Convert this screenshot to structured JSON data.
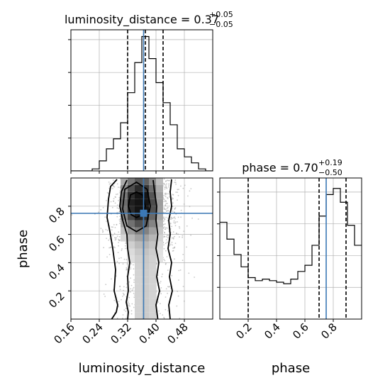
{
  "chart_data": {
    "type": "corner",
    "colors": {
      "truth": "#3b78b5",
      "hist": "#000000",
      "quantile": "#000000",
      "grid": "#b0b0b0",
      "scatter": "#9a9a9a"
    },
    "grid": true,
    "parameters": [
      {
        "name": "luminosity_distance",
        "label": "luminosity_distance",
        "title_prefix": "luminosity_distance = 0.37",
        "title_sup": "+0.05",
        "title_sub": "−0.05",
        "range": [
          0.16,
          0.56
        ],
        "ticks": [
          0.16,
          0.24,
          0.32,
          0.4,
          0.48
        ],
        "tick_labels": [
          "0.16",
          "0.24",
          "0.32",
          "0.40",
          "0.48"
        ],
        "truth": 0.365,
        "quantiles": [
          0.32,
          0.37,
          0.42
        ],
        "hist_edges": [
          0.16,
          0.18,
          0.2,
          0.22,
          0.24,
          0.26,
          0.28,
          0.3,
          0.32,
          0.34,
          0.36,
          0.38,
          0.4,
          0.42,
          0.44,
          0.46,
          0.48,
          0.5,
          0.52,
          0.54,
          0.56
        ],
        "hist_counts": [
          0,
          0,
          0,
          1,
          5,
          11,
          16,
          24,
          39,
          54,
          67,
          56,
          44,
          34,
          23,
          11,
          7,
          4,
          1,
          0
        ]
      },
      {
        "name": "phase",
        "label": "phase",
        "title_prefix": "phase = 0.70",
        "title_sup": "+0.19",
        "title_sub": "−0.50",
        "range": [
          0.0,
          1.0
        ],
        "ticks": [
          0.2,
          0.4,
          0.6,
          0.8
        ],
        "tick_labels": [
          "0.2",
          "0.4",
          "0.6",
          "0.8"
        ],
        "truth": 0.75,
        "quantiles": [
          0.2,
          0.7,
          0.89
        ],
        "hist_edges": [
          0.0,
          0.05,
          0.1,
          0.15,
          0.2,
          0.25,
          0.3,
          0.35,
          0.4,
          0.45,
          0.5,
          0.55,
          0.6,
          0.65,
          0.7,
          0.75,
          0.8,
          0.85,
          0.9,
          0.95,
          1.0
        ],
        "hist_counts": [
          63,
          52,
          42,
          34,
          27,
          25,
          26,
          25,
          24,
          23,
          26,
          31,
          35,
          48,
          67,
          81,
          85,
          76,
          61,
          48
        ]
      }
    ],
    "joint": {
      "x": "luminosity_distance",
      "y": "phase",
      "truth_point": [
        0.365,
        0.75
      ],
      "peak": [
        0.35,
        0.82
      ]
    }
  }
}
